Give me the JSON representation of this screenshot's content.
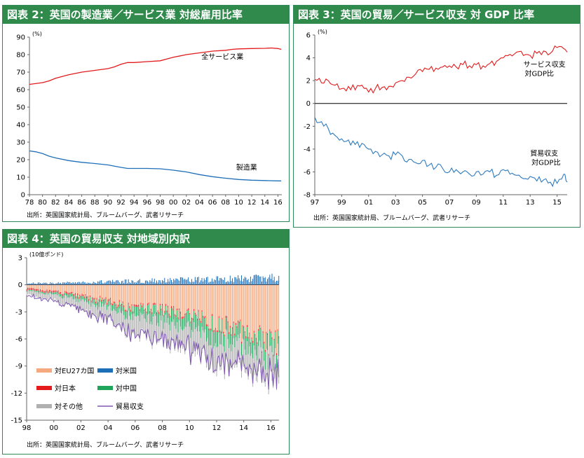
{
  "chart_data": [
    {
      "id": "chart2",
      "type": "line",
      "title": "図表 2：英国の製造業／サービス業 対総雇用比率",
      "unit": "(%)",
      "xlabel": "",
      "ylabel": "(%)",
      "ylim": [
        0,
        90
      ],
      "yticks": [
        0,
        10,
        20,
        30,
        40,
        50,
        60,
        70,
        80,
        90
      ],
      "xlim": [
        1978,
        2016.6
      ],
      "xtick_values": [
        1978,
        1980,
        1982,
        1984,
        1986,
        1988,
        1990,
        1992,
        1994,
        1996,
        1998,
        2000,
        2002,
        2004,
        2006,
        2008,
        2010,
        2012,
        2014,
        2016
      ],
      "xtick_labels": [
        "78",
        "80",
        "82",
        "84",
        "86",
        "88",
        "90",
        "92",
        "94",
        "96",
        "98",
        "00",
        "02",
        "04",
        "06",
        "08",
        "10",
        "12",
        "14",
        "16"
      ],
      "series": [
        {
          "name": "全サービス業",
          "color": "#e31a1c",
          "x": [
            1978,
            1980,
            1981,
            1982,
            1983,
            1984,
            1986,
            1988,
            1990,
            1991,
            1992,
            1993,
            1994,
            1996,
            1998,
            1999,
            2000,
            2002,
            2004,
            2006,
            2008,
            2009,
            2010,
            2012,
            2014,
            2015,
            2016,
            2016.5
          ],
          "y": [
            63,
            64,
            65,
            66.5,
            67.5,
            68.5,
            70,
            71,
            72,
            73,
            74.5,
            75.5,
            75.5,
            76,
            76.5,
            77.5,
            78.5,
            80,
            81,
            82,
            82.5,
            83,
            83.3,
            83.5,
            83.6,
            83.8,
            83.5,
            83
          ]
        },
        {
          "name": "製造業",
          "color": "#1f6fb8",
          "x": [
            1978,
            1979,
            1980,
            1981,
            1982,
            1984,
            1986,
            1988,
            1990,
            1992,
            1993,
            1994,
            1996,
            1998,
            2000,
            2002,
            2004,
            2006,
            2008,
            2010,
            2012,
            2014,
            2016,
            2016.5
          ],
          "y": [
            25,
            24.5,
            23.5,
            22,
            21,
            19.5,
            18.5,
            17.8,
            17,
            15.6,
            15,
            15,
            15,
            14.8,
            14,
            13,
            11.5,
            10.3,
            9.4,
            8.7,
            8.3,
            8.1,
            7.9,
            7.9
          ]
        }
      ],
      "annotations": [
        {
          "text": "全サービス業",
          "x": 2004.3,
          "y": 77.5
        },
        {
          "text": "製造業",
          "x": 2009.6,
          "y": 14.2
        }
      ],
      "source": "出所：英国国家統計局、ブルームバーグ、武者リサーチ"
    },
    {
      "id": "chart3",
      "type": "line",
      "title": "図表 3：英国の貿易／サービス収支 対 GDP 比率",
      "unit": "(%)",
      "xlabel": "",
      "ylabel": "(%)",
      "ylim": [
        -8,
        6
      ],
      "yticks": [
        -8,
        -6,
        -4,
        -2,
        0,
        2,
        4,
        6
      ],
      "xlim": [
        1997,
        2015.75
      ],
      "xtick_values": [
        1997,
        1999,
        2001,
        2003,
        2005,
        2007,
        2009,
        2011,
        2013,
        2015
      ],
      "xtick_labels": [
        "97",
        "99",
        "01",
        "03",
        "05",
        "07",
        "09",
        "11",
        "13",
        "15"
      ],
      "series": [
        {
          "name": "サービス収支 対GDP比",
          "color": "#e31a1c",
          "x": [
            1997,
            1997.5,
            1998,
            1998.5,
            1999,
            1999.5,
            2000,
            2000.5,
            2001,
            2001.5,
            2002,
            2002.5,
            2003,
            2003.5,
            2004,
            2004.5,
            2005,
            2005.5,
            2006,
            2006.5,
            2007,
            2007.5,
            2008,
            2008.5,
            2009,
            2009.5,
            2010,
            2010.5,
            2011,
            2011.5,
            2012,
            2012.5,
            2013,
            2013.5,
            2014,
            2014.5,
            2015,
            2015.5,
            2015.75
          ],
          "y": [
            2.1,
            1.8,
            2.0,
            1.6,
            1.3,
            1.5,
            1.2,
            1.6,
            1.0,
            1.3,
            1.4,
            1.5,
            1.8,
            2.0,
            2.3,
            2.6,
            2.8,
            3.0,
            3.1,
            3.2,
            3.3,
            3.2,
            3.4,
            3.3,
            3.4,
            3.3,
            3.5,
            3.7,
            4.0,
            4.3,
            4.5,
            4.2,
            4.2,
            4.4,
            4.6,
            4.4,
            4.9,
            4.8,
            4.5
          ]
        },
        {
          "name": "貿易収支 対GDP比",
          "color": "#2e7bbf",
          "x": [
            1997,
            1997.5,
            1998,
            1998.5,
            1999,
            1999.5,
            2000,
            2000.5,
            2001,
            2001.5,
            2002,
            2002.5,
            2003,
            2003.5,
            2004,
            2004.5,
            2005,
            2005.5,
            2006,
            2006.5,
            2007,
            2007.5,
            2008,
            2008.5,
            2009,
            2009.5,
            2010,
            2010.5,
            2011,
            2011.5,
            2012,
            2012.5,
            2013,
            2013.5,
            2014,
            2014.5,
            2015,
            2015.5,
            2015.75
          ],
          "y": [
            -1.2,
            -1.6,
            -2.2,
            -2.8,
            -3.1,
            -3.2,
            -3.6,
            -3.5,
            -4.0,
            -4.2,
            -4.5,
            -4.6,
            -4.5,
            -4.6,
            -4.9,
            -5.2,
            -5.0,
            -5.4,
            -5.6,
            -5.7,
            -6.0,
            -5.8,
            -6.0,
            -6.2,
            -6.0,
            -6.2,
            -6.0,
            -6.3,
            -5.8,
            -6.2,
            -6.3,
            -6.6,
            -6.4,
            -6.8,
            -6.7,
            -6.9,
            -7.0,
            -6.2,
            -6.9
          ]
        }
      ],
      "annotations": [
        {
          "text": "サービス収支",
          "x": 2012.5,
          "y": 3.2
        },
        {
          "text": "対GDP比",
          "x": 2012.6,
          "y": 2.4
        },
        {
          "text": "貿易収支",
          "x": 2013.0,
          "y": -4.6
        },
        {
          "text": "対GDP比",
          "x": 2013.1,
          "y": -5.4
        }
      ],
      "source": "出所：英国国家統計局、ブルームバーグ、武者リサーチ"
    },
    {
      "id": "chart4",
      "type": "bar",
      "title": "図表 4：英国の貿易収支 対地域別内訳",
      "unit": "(10億ポンド)",
      "xlabel": "",
      "ylabel": "(10億ポンド)",
      "ylim": [
        -15,
        3
      ],
      "yticks": [
        -15,
        -12,
        -9,
        -6,
        -3,
        0,
        3
      ],
      "xlim": [
        1998,
        2016.6
      ],
      "xtick_values": [
        1998,
        2000,
        2002,
        2004,
        2006,
        2008,
        2010,
        2012,
        2014,
        2016
      ],
      "xtick_labels": [
        "98",
        "00",
        "02",
        "04",
        "06",
        "08",
        "10",
        "12",
        "14",
        "16"
      ],
      "trend_years": [
        1998,
        2000,
        2002,
        2004,
        2006,
        2008,
        2010,
        2012,
        2014,
        2016.6
      ],
      "trend": {
        "eu27": [
          -0.4,
          -0.7,
          -1.2,
          -1.8,
          -2.5,
          -2.7,
          -3.3,
          -4.2,
          -5.2,
          -6.6
        ],
        "japan": [
          -0.2,
          -0.2,
          -0.2,
          -0.2,
          -0.2,
          -0.2,
          -0.2,
          -0.2,
          -0.2,
          -0.2
        ],
        "china": [
          -0.1,
          -0.2,
          -0.4,
          -0.6,
          -0.9,
          -1.2,
          -1.4,
          -1.5,
          -1.6,
          -1.7
        ],
        "other": [
          -0.4,
          -0.6,
          -1.0,
          -1.4,
          -1.9,
          -2.3,
          -2.4,
          -2.5,
          -2.5,
          -2.4
        ],
        "us": [
          0.15,
          0.2,
          0.25,
          0.35,
          0.4,
          0.5,
          0.55,
          0.6,
          0.7,
          0.8
        ]
      },
      "series": [
        {
          "name": "対EU27カ国",
          "color": "#f4a97f"
        },
        {
          "name": "対米国",
          "color": "#1f6fb8"
        },
        {
          "name": "対日本",
          "color": "#e41a1c"
        },
        {
          "name": "対中国",
          "color": "#1fa55a"
        },
        {
          "name": "対その他",
          "color": "#b0b0b0"
        },
        {
          "name": "貿易収支",
          "color": "#7e57b0"
        }
      ],
      "source": "出所：英国国家統計局、ブルームバーグ、武者リサーチ"
    }
  ]
}
